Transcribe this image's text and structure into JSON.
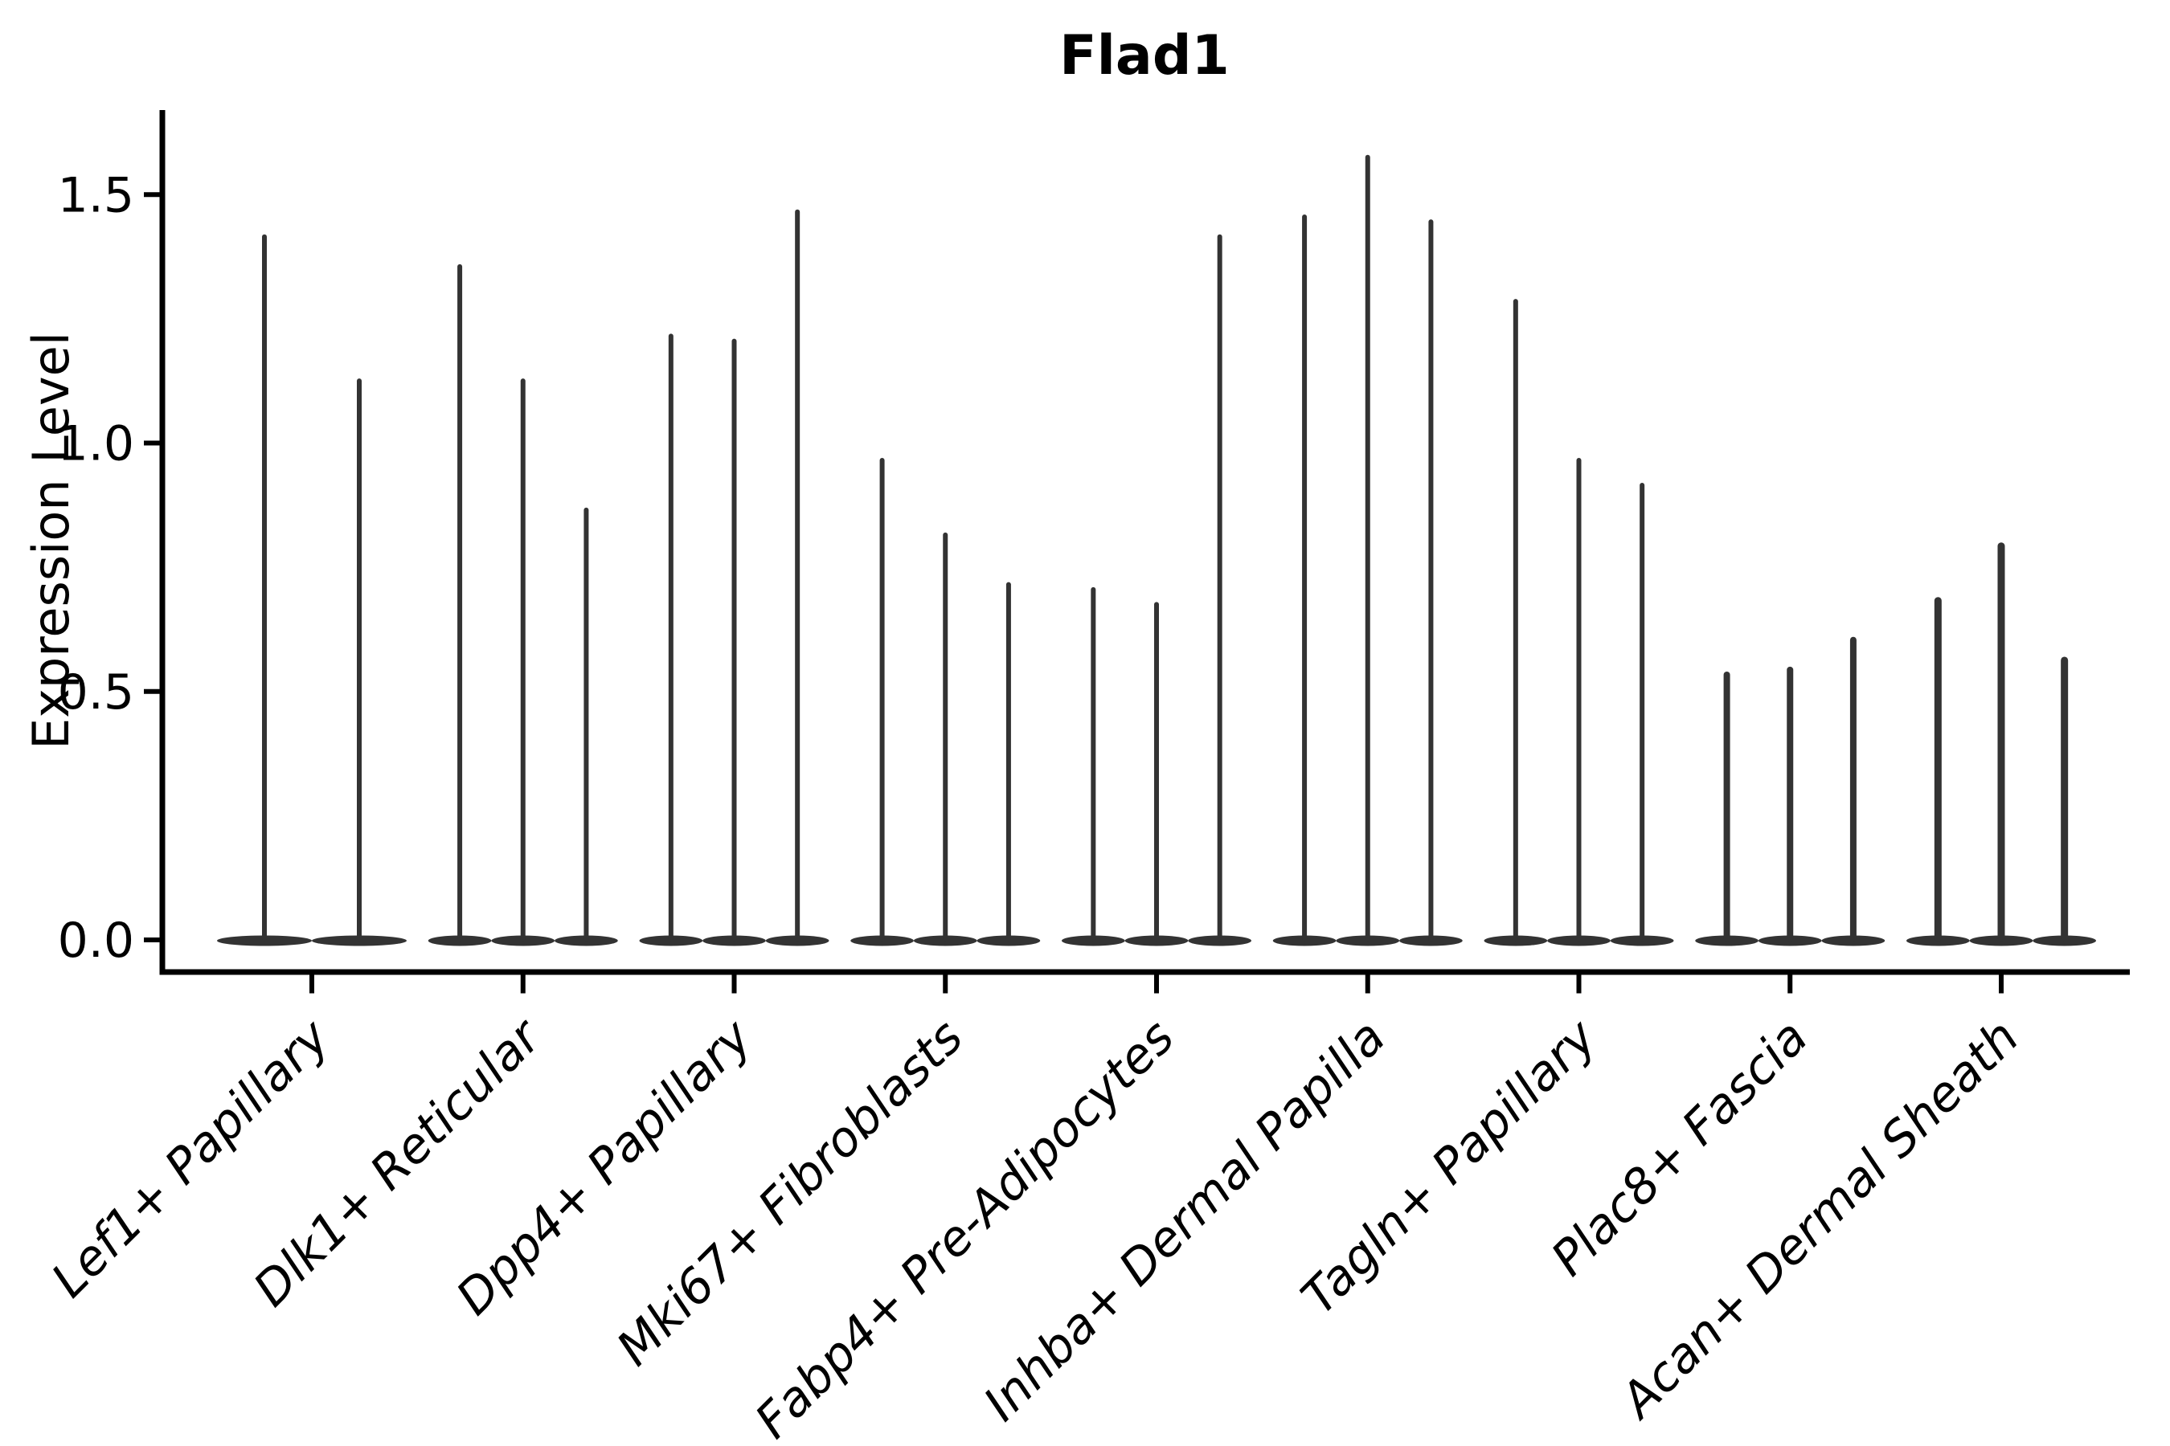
{
  "chart_data": {
    "type": "violin",
    "title": "Flad1",
    "xlabel": "",
    "ylabel": "Expression Level",
    "ylim": [
      -0.07,
      1.67
    ],
    "yticks": [
      0.0,
      0.5,
      1.0,
      1.5
    ],
    "grid": false,
    "legend_position": "none",
    "style_note": "Seurat-style stacked/grouped violin plot; each cluster shows 2-3 very thin needle violins with a flat dense base at expression 0",
    "colors": {
      "violin": "#333333",
      "axis": "#000000",
      "text": "#000000",
      "background": "#ffffff"
    },
    "groups": [
      {
        "category": "Lef1+ Papillary",
        "violin_max": [
          1.42,
          1.13
        ]
      },
      {
        "category": "Dlk1+ Reticular",
        "violin_max": [
          1.36,
          1.13,
          0.87
        ]
      },
      {
        "category": "Dpp4+ Papillary",
        "violin_max": [
          1.22,
          1.21,
          1.47
        ]
      },
      {
        "category": "Mki67+ Fibroblasts",
        "violin_max": [
          0.97,
          0.82,
          0.72
        ]
      },
      {
        "category": "Fabp4+ Pre-Adipocytes",
        "violin_max": [
          0.71,
          0.68,
          1.42
        ]
      },
      {
        "category": "Inhba+ Dermal Papilla",
        "violin_max": [
          1.46,
          1.58,
          1.45
        ]
      },
      {
        "category": "Tagln+ Papillary",
        "violin_max": [
          1.29,
          0.97,
          0.92
        ]
      },
      {
        "category": "Plac8+ Fascia",
        "violin_max": [
          0.54,
          0.55,
          0.61
        ]
      },
      {
        "category": "Acan+ Dermal Sheath",
        "violin_max": [
          0.69,
          0.8,
          0.57
        ]
      }
    ]
  }
}
